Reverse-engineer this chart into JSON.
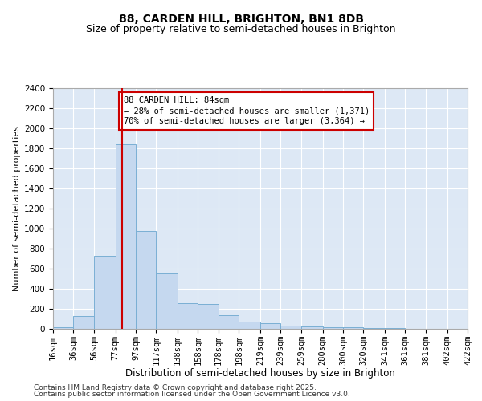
{
  "title1": "88, CARDEN HILL, BRIGHTON, BN1 8DB",
  "title2": "Size of property relative to semi-detached houses in Brighton",
  "xlabel": "Distribution of semi-detached houses by size in Brighton",
  "ylabel": "Number of semi-detached properties",
  "footer1": "Contains HM Land Registry data © Crown copyright and database right 2025.",
  "footer2": "Contains public sector information licensed under the Open Government Licence v3.0.",
  "annotation_line1": "88 CARDEN HILL: 84sqm",
  "annotation_line2": "← 28% of semi-detached houses are smaller (1,371)",
  "annotation_line3": "70% of semi-detached houses are larger (3,364) →",
  "property_size": 84,
  "bins": [
    16,
    36,
    56,
    77,
    97,
    117,
    138,
    158,
    178,
    198,
    219,
    239,
    259,
    280,
    300,
    320,
    341,
    361,
    381,
    402,
    422
  ],
  "bin_labels": [
    "16sqm",
    "36sqm",
    "56sqm",
    "77sqm",
    "97sqm",
    "117sqm",
    "138sqm",
    "158sqm",
    "178sqm",
    "198sqm",
    "219sqm",
    "239sqm",
    "259sqm",
    "280sqm",
    "300sqm",
    "320sqm",
    "341sqm",
    "361sqm",
    "381sqm",
    "402sqm",
    "422sqm"
  ],
  "values": [
    15,
    130,
    730,
    1840,
    980,
    550,
    255,
    250,
    140,
    70,
    55,
    35,
    25,
    20,
    15,
    8,
    5,
    3,
    2,
    1
  ],
  "bar_color": "#c5d8ef",
  "bar_edge_color": "#7aafd4",
  "red_line_color": "#cc0000",
  "ylim": [
    0,
    2400
  ],
  "yticks": [
    0,
    200,
    400,
    600,
    800,
    1000,
    1200,
    1400,
    1600,
    1800,
    2000,
    2200,
    2400
  ],
  "background_color": "#dde8f5",
  "fig_background": "#ffffff",
  "grid_color": "#ffffff",
  "title1_fontsize": 10,
  "title2_fontsize": 9,
  "xlabel_fontsize": 8.5,
  "ylabel_fontsize": 8,
  "tick_fontsize": 7.5,
  "annotation_fontsize": 7.5,
  "footer_fontsize": 6.5
}
